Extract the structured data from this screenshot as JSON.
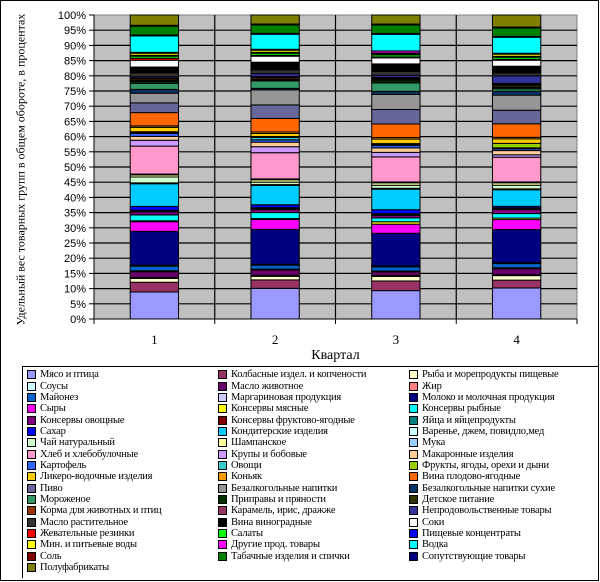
{
  "chart_data": {
    "type": "bar",
    "stacked": "percent",
    "title": "",
    "xlabel": "Квартал",
    "ylabel": "Удельный вес товарных групп в общем обороте, в процентах",
    "ylim": [
      0,
      100
    ],
    "yticks": [
      "0%",
      "5%",
      "10%",
      "15%",
      "20%",
      "25%",
      "30%",
      "35%",
      "40%",
      "45%",
      "50%",
      "55%",
      "60%",
      "65%",
      "70%",
      "75%",
      "80%",
      "85%",
      "90%",
      "95%",
      "100%"
    ],
    "categories": [
      "1",
      "2",
      "3",
      "4"
    ],
    "grid": true,
    "legend_position": "bottom",
    "plot_background": "#c0c0c0",
    "series": [
      {
        "name": "Мясо и птица",
        "color": "#9999ff",
        "values": [
          9.2,
          10.2,
          9.4,
          10.3
        ]
      },
      {
        "name": "Колбасные издел. и копчености",
        "color": "#993366",
        "values": [
          3.3,
          2.8,
          3.2,
          2.6
        ]
      },
      {
        "name": "Рыба и морепродукты пищевые",
        "color": "#ffffcc",
        "values": [
          1.3,
          1.2,
          1.5,
          1.5
        ]
      },
      {
        "name": "Соусы",
        "color": "#ccffff",
        "values": [
          0.3,
          0.3,
          0.3,
          0.3
        ]
      },
      {
        "name": "Масло животное",
        "color": "#660066",
        "values": [
          2.0,
          1.8,
          1.2,
          2.0
        ]
      },
      {
        "name": "Жир",
        "color": "#ff8080",
        "values": [
          0.3,
          0.3,
          0.3,
          0.3
        ]
      },
      {
        "name": "Майонез",
        "color": "#0066cc",
        "values": [
          1.6,
          1.3,
          1.4,
          1.4
        ]
      },
      {
        "name": "Маргариновая продукция",
        "color": "#ccccff",
        "values": [
          0.3,
          0.3,
          0.3,
          0.3
        ]
      },
      {
        "name": "Молоко и молочная продукция",
        "color": "#000080",
        "values": [
          11.5,
          11.6,
          10.8,
          11.0
        ]
      },
      {
        "name": "Сыры",
        "color": "#ff00ff",
        "values": [
          3.3,
          3.3,
          3.0,
          3.3
        ]
      },
      {
        "name": "Консервы мясные",
        "color": "#ffff00",
        "values": [
          0.3,
          0.3,
          0.8,
          0.5
        ]
      },
      {
        "name": "Консервы рыбные",
        "color": "#00ffff",
        "values": [
          2.0,
          2.0,
          1.3,
          1.5
        ]
      },
      {
        "name": "Консервы овощные",
        "color": "#800080",
        "values": [
          1.0,
          1.0,
          0.8,
          1.3
        ]
      },
      {
        "name": "Консервы фруктово-ягодные",
        "color": "#800000",
        "values": [
          0.3,
          0.3,
          0.3,
          0.3
        ]
      },
      {
        "name": "Яйца и яйцепродукты",
        "color": "#008080",
        "values": [
          0.3,
          0.3,
          0.3,
          0.3
        ]
      },
      {
        "name": "Сахар",
        "color": "#0000ff",
        "values": [
          1.3,
          1.0,
          1.3,
          0.5
        ]
      },
      {
        "name": "Кондитерские изделия",
        "color": "#00ccff",
        "values": [
          7.7,
          6.4,
          6.8,
          5.5
        ]
      },
      {
        "name": "Варенье, джем, повидло,мед",
        "color": "#ccffff",
        "values": [
          0.3,
          0.3,
          0.3,
          0.3
        ]
      },
      {
        "name": "Чай натуральный",
        "color": "#ccffcc",
        "values": [
          2.0,
          0.8,
          1.0,
          1.2
        ]
      },
      {
        "name": "Шампанское",
        "color": "#ffff99",
        "values": [
          0.7,
          0.8,
          0.8,
          0.8
        ]
      },
      {
        "name": "Мука",
        "color": "#99ccff",
        "values": [
          0.3,
          0.3,
          0.3,
          0.3
        ]
      },
      {
        "name": "Хлеб и хлебобулочные",
        "color": "#ff99cc",
        "values": [
          9.5,
          8.7,
          8.3,
          8.2
        ]
      },
      {
        "name": "Крупы и бобовые",
        "color": "#cc99ff",
        "values": [
          2.0,
          2.0,
          1.5,
          0.8
        ]
      },
      {
        "name": "Макаронные изделия",
        "color": "#ffcc99",
        "values": [
          1.3,
          1.5,
          1.5,
          1.4
        ]
      },
      {
        "name": "Картофель",
        "color": "#3366ff",
        "values": [
          1.0,
          0.8,
          0.8,
          0.6
        ]
      },
      {
        "name": "Овощи",
        "color": "#33cccc",
        "values": [
          0.3,
          0.8,
          0.3,
          0.3
        ]
      },
      {
        "name": "Фрукты, ягоды, орехи и дыни",
        "color": "#99cc00",
        "values": [
          0.3,
          0.3,
          0.3,
          1.5
        ]
      },
      {
        "name": "Ликеро-водочные изделия",
        "color": "#ffcc00",
        "values": [
          1.5,
          1.0,
          1.5,
          1.5
        ]
      },
      {
        "name": "Коньяк",
        "color": "#ff9900",
        "values": [
          0.5,
          0.5,
          0.5,
          0.5
        ]
      },
      {
        "name": "Вина плодово-ягодные",
        "color": "#ff6600",
        "values": [
          4.5,
          4.5,
          4.5,
          4.5
        ]
      },
      {
        "name": "Пиво",
        "color": "#666699",
        "values": [
          3.3,
          4.5,
          4.8,
          4.5
        ]
      },
      {
        "name": "Безалкогольные напитки",
        "color": "#969696",
        "values": [
          3.3,
          5.0,
          5.0,
          5.0
        ]
      },
      {
        "name": "Безалкогольные напитки сухие",
        "color": "#003366",
        "values": [
          1.3,
          0.5,
          1.0,
          1.3
        ]
      },
      {
        "name": "Мороженое",
        "color": "#339966",
        "values": [
          2.0,
          2.5,
          2.8,
          0.8
        ]
      },
      {
        "name": "Приправы и пряности",
        "color": "#003300",
        "values": [
          0.7,
          0.3,
          0.7,
          0.5
        ]
      },
      {
        "name": "Детское питание",
        "color": "#333300",
        "values": [
          0.3,
          0.3,
          0.5,
          0.7
        ]
      },
      {
        "name": "Корма для животных и птиц",
        "color": "#993300",
        "values": [
          0.5,
          0.5,
          0.3,
          0.3
        ]
      },
      {
        "name": "Карамель, ирис, дражже",
        "color": "#993366",
        "values": [
          0.3,
          0.3,
          0.3,
          0.3
        ]
      },
      {
        "name": "Непродовольственные товары",
        "color": "#333399",
        "values": [
          0.5,
          1.0,
          0.7,
          2.5
        ]
      },
      {
        "name": "Масло растительное",
        "color": "#333333",
        "values": [
          1.3,
          1.3,
          1.3,
          1.0
        ]
      },
      {
        "name": "Вина виноградные",
        "color": "#000000",
        "values": [
          2.0,
          2.5,
          2.5,
          2.2
        ]
      },
      {
        "name": "Соки",
        "color": "#ffffff",
        "values": [
          2.3,
          2.0,
          2.0,
          2.0
        ]
      },
      {
        "name": "Жевательные резинки",
        "color": "#ff0000",
        "values": [
          0.7,
          0.3,
          0.3,
          0.3
        ]
      },
      {
        "name": "Салаты",
        "color": "#00ff00",
        "values": [
          0.7,
          0.7,
          0.7,
          0.7
        ]
      },
      {
        "name": "Пищевые концентраты",
        "color": "#0000ff",
        "values": [
          0.3,
          0.3,
          0.3,
          0.3
        ]
      },
      {
        "name": "Мин. и питьевые воды",
        "color": "#ffff00",
        "values": [
          0.7,
          0.7,
          0.3,
          0.7
        ]
      },
      {
        "name": "Другие прод. товары",
        "color": "#ff00ff",
        "values": [
          0.3,
          0.3,
          0.7,
          0.3
        ]
      },
      {
        "name": "Водка",
        "color": "#00ffff",
        "values": [
          5.6,
          5.0,
          5.5,
          5.3
        ]
      },
      {
        "name": "Соль",
        "color": "#800000",
        "values": [
          0.3,
          0.3,
          0.3,
          0.3
        ]
      },
      {
        "name": "Табачные изделия и спички",
        "color": "#008000",
        "values": [
          3.0,
          2.8,
          2.8,
          2.8
        ]
      },
      {
        "name": "Сопутствующие товары",
        "color": "#000080",
        "values": [
          0.3,
          0.3,
          0.3,
          0.3
        ]
      },
      {
        "name": "Полуфабрикаты",
        "color": "#808000",
        "values": [
          3.5,
          3.0,
          3.0,
          4.0
        ]
      }
    ]
  }
}
